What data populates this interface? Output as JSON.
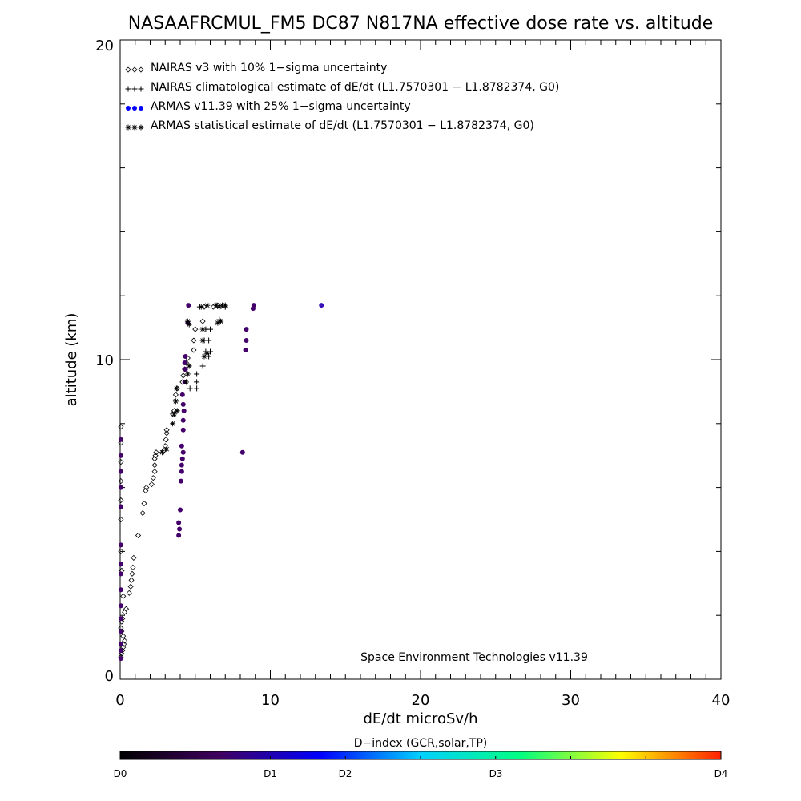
{
  "chart_data": {
    "type": "scatter",
    "title": "NASAAFRCMUL_FM5 DC87 N817NA effective dose rate vs. altitude",
    "xlabel": "dE/dt microSv/h",
    "ylabel": "altitude (km)",
    "xlim": [
      0,
      40
    ],
    "ylim": [
      0,
      20
    ],
    "x_ticks": [
      "0",
      "10",
      "20",
      "30",
      "40"
    ],
    "y_ticks": [
      "0",
      "10",
      "20"
    ],
    "grid": false,
    "legend_position": "top-left",
    "annotation": "Space Environment Technologies v11.39",
    "colorbar": {
      "title": "D−index (GCR,solar,TP)",
      "ticks": [
        {
          "label": "D0",
          "value": 0
        },
        {
          "label": "D1",
          "value": 0.25
        },
        {
          "label": "D2",
          "value": 0.375
        },
        {
          "label": "D3",
          "value": 0.625
        },
        {
          "label": "D4",
          "value": 1.0
        }
      ],
      "stops": [
        "#000000",
        "#400060",
        "#0000ff",
        "#00d0ff",
        "#00ff80",
        "#ffff00",
        "#ff2000"
      ]
    },
    "series": [
      {
        "name": "NAIRAS v3 with 10% 1−sigma uncertainty",
        "marker": "diamond",
        "color": "#000000",
        "points": [
          [
            0.05,
            0.7
          ],
          [
            0.1,
            0.8
          ],
          [
            0.15,
            0.9
          ],
          [
            0.2,
            1.0
          ],
          [
            0.25,
            1.1
          ],
          [
            0.3,
            1.2
          ],
          [
            0.2,
            1.35
          ],
          [
            0.1,
            1.5
          ],
          [
            0.05,
            1.6
          ],
          [
            0.1,
            1.8
          ],
          [
            0.15,
            1.9
          ],
          [
            0.3,
            2.1
          ],
          [
            0.4,
            2.2
          ],
          [
            0.6,
            2.7
          ],
          [
            0.7,
            2.9
          ],
          [
            0.75,
            3.1
          ],
          [
            0.8,
            3.3
          ],
          [
            0.85,
            3.5
          ],
          [
            0.9,
            3.8
          ],
          [
            0.1,
            3.4
          ],
          [
            0.2,
            2.6
          ],
          [
            1.2,
            4.5
          ],
          [
            1.5,
            5.2
          ],
          [
            1.6,
            5.5
          ],
          [
            1.7,
            5.9
          ],
          [
            1.75,
            6.0
          ],
          [
            2.1,
            6.1
          ],
          [
            2.2,
            6.3
          ],
          [
            2.3,
            6.5
          ],
          [
            2.3,
            6.7
          ],
          [
            2.3,
            6.9
          ],
          [
            2.35,
            7.0
          ],
          [
            2.4,
            7.1
          ],
          [
            2.9,
            7.15
          ],
          [
            3.0,
            7.3
          ],
          [
            3.05,
            7.5
          ],
          [
            3.1,
            7.7
          ],
          [
            3.1,
            7.8
          ],
          [
            3.5,
            8.3
          ],
          [
            3.6,
            8.4
          ],
          [
            3.7,
            8.9
          ],
          [
            3.8,
            9.1
          ],
          [
            4.15,
            9.3
          ],
          [
            4.2,
            9.5
          ],
          [
            4.3,
            9.7
          ],
          [
            4.4,
            9.9
          ],
          [
            4.5,
            10.05
          ],
          [
            4.9,
            10.3
          ],
          [
            4.9,
            10.6
          ],
          [
            5.0,
            10.95
          ],
          [
            5.5,
            11.2
          ],
          [
            5.6,
            11.65
          ],
          [
            6.2,
            11.65
          ],
          [
            6.5,
            11.7
          ],
          [
            0.05,
            4.0
          ],
          [
            0.05,
            5.0
          ],
          [
            0.05,
            5.6
          ],
          [
            0.05,
            6.2
          ],
          [
            0.05,
            6.8
          ],
          [
            0.05,
            7.4
          ],
          [
            0.05,
            7.9
          ]
        ]
      },
      {
        "name": "NAIRAS climatological estimate of dE/dt (L1.7570301 − L1.8782374, G0)",
        "marker": "plus",
        "color": "#000000",
        "points": [
          [
            4.65,
            9.1
          ],
          [
            5.1,
            9.1
          ],
          [
            5.1,
            9.3
          ],
          [
            5.1,
            9.55
          ],
          [
            5.5,
            9.8
          ],
          [
            5.9,
            10.1
          ],
          [
            5.7,
            10.25
          ],
          [
            6.0,
            10.25
          ],
          [
            5.9,
            10.6
          ],
          [
            5.6,
            10.6
          ],
          [
            5.7,
            10.95
          ],
          [
            6.0,
            10.95
          ],
          [
            5.3,
            11.65
          ],
          [
            6.6,
            11.25
          ],
          [
            7.0,
            11.65
          ]
        ]
      },
      {
        "name": "ARMAS v11.39 with 25% 1−sigma uncertainty",
        "marker": "dot",
        "color": "#0000ff",
        "points": [
          [
            0.05,
            0.65
          ],
          [
            0.05,
            0.9
          ],
          [
            0.05,
            1.1
          ],
          [
            0.05,
            1.5
          ],
          [
            0.05,
            1.9
          ],
          [
            0.05,
            2.3
          ],
          [
            0.05,
            2.8
          ],
          [
            0.05,
            3.3
          ],
          [
            0.05,
            3.6
          ],
          [
            0.05,
            4.2
          ],
          [
            0.05,
            5.4
          ],
          [
            0.05,
            6.0
          ],
          [
            0.05,
            6.5
          ],
          [
            0.05,
            7.0
          ],
          [
            0.05,
            7.5
          ],
          [
            3.9,
            4.5
          ],
          [
            3.95,
            4.7
          ],
          [
            3.9,
            4.9
          ],
          [
            4.0,
            5.3
          ],
          [
            4.05,
            6.2
          ],
          [
            4.1,
            6.5
          ],
          [
            4.1,
            6.7
          ],
          [
            4.15,
            6.9
          ],
          [
            4.2,
            7.1
          ],
          [
            4.1,
            7.3
          ],
          [
            4.2,
            7.8
          ],
          [
            4.2,
            8.1
          ],
          [
            4.25,
            8.4
          ],
          [
            4.2,
            8.6
          ],
          [
            4.15,
            8.9
          ],
          [
            4.3,
            9.3
          ],
          [
            4.35,
            9.7
          ],
          [
            4.3,
            9.9
          ],
          [
            4.35,
            10.1
          ],
          [
            4.5,
            11.15
          ],
          [
            4.55,
            11.7
          ],
          [
            8.15,
            7.1
          ],
          [
            8.35,
            10.3
          ],
          [
            8.4,
            10.6
          ],
          [
            8.4,
            10.95
          ],
          [
            8.85,
            11.6
          ],
          [
            8.9,
            11.7
          ],
          [
            13.4,
            11.7
          ]
        ]
      },
      {
        "name": "ARMAS statistical estimate of dE/dt (L1.7570301 − L1.8782374, G0)",
        "marker": "asterisk",
        "color": "#000000",
        "points": [
          [
            3.5,
            8.0
          ],
          [
            3.6,
            8.3
          ],
          [
            3.7,
            8.7
          ],
          [
            3.75,
            9.1
          ],
          [
            3.8,
            8.4
          ],
          [
            2.8,
            7.1
          ],
          [
            3.1,
            7.2
          ],
          [
            4.4,
            9.3
          ],
          [
            4.5,
            9.55
          ],
          [
            4.6,
            9.8
          ],
          [
            5.6,
            10.1
          ],
          [
            5.8,
            10.2
          ],
          [
            5.5,
            10.6
          ],
          [
            5.5,
            10.95
          ],
          [
            5.4,
            11.65
          ],
          [
            5.8,
            11.7
          ],
          [
            6.4,
            11.7
          ],
          [
            6.6,
            11.65
          ],
          [
            6.8,
            11.7
          ],
          [
            7.0,
            11.7
          ],
          [
            6.7,
            11.2
          ],
          [
            6.5,
            11.15
          ],
          [
            4.5,
            11.2
          ],
          [
            4.6,
            11.1
          ]
        ]
      }
    ]
  }
}
